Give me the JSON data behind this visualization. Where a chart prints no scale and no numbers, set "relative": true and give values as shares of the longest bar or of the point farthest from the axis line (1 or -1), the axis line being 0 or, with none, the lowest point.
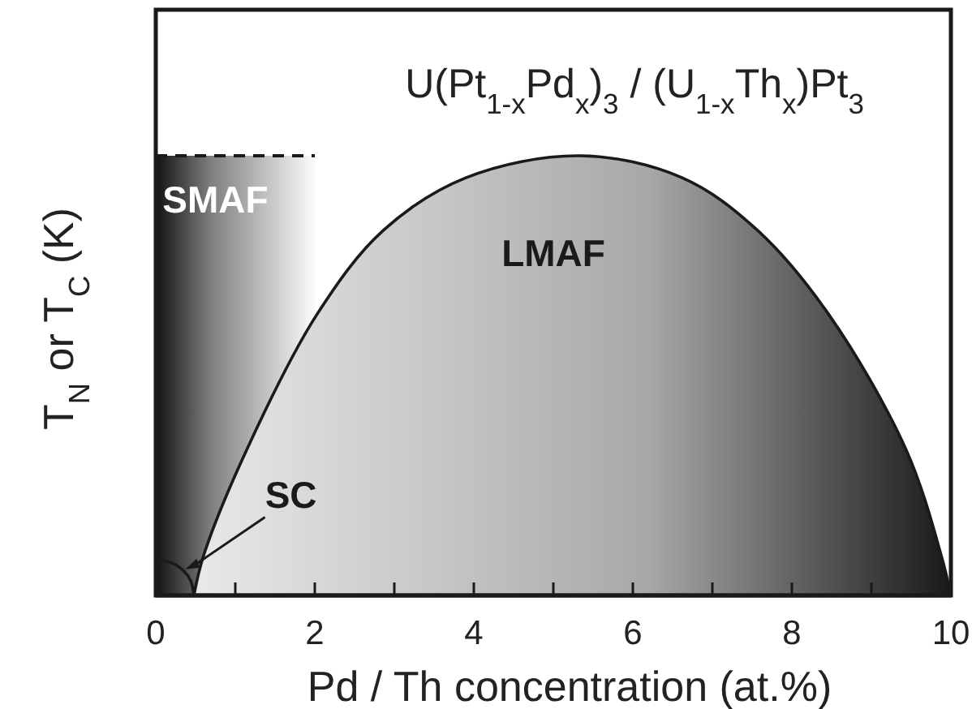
{
  "chart_data": {
    "type": "area",
    "relative": true,
    "title": "U(Pt$_{1-x}$Pd$_{x}$)$_{3}$ / (U$_{1-x}$Th$_{x}$)Pt$_{3}$",
    "xlabel": "Pd / Th concentration (at.%)",
    "ylabel": "T$_{N}$ or T$_{C}$ (K)",
    "xlim": [
      0,
      10
    ],
    "xticks": [
      0,
      {
        "value": 1,
        "label": null
      },
      2,
      {
        "value": 3,
        "label": null
      },
      4,
      {
        "value": 5,
        "label": null
      },
      6,
      {
        "value": 7,
        "label": null
      },
      8,
      {
        "value": 9,
        "label": null
      },
      10
    ],
    "series": [
      {
        "color": "#808080",
        "line_style": "dashed",
        "x": [
          0,
          2
        ],
        "values": [
          1,
          1
        ]
      },
      {
        "color": "#a8a8a8",
        "line_style": "solid",
        "x": [
          0.48,
          0.6,
          1.14,
          2.03,
          2.86,
          3.9,
          5.33,
          6.62,
          7.57,
          8.46,
          9.44,
          9.88,
          10
        ],
        "values": [
          0,
          0.09,
          0.33,
          0.64,
          0.83,
          0.95,
          1,
          0.95,
          0.83,
          0.64,
          0.33,
          0.09,
          0
        ]
      },
      {
        "type": "line",
        "color": "#1a1a1a",
        "line_style": "solid",
        "x": [
          0,
          0.2,
          0.35,
          0.44,
          0.48
        ],
        "values": [
          0.08,
          0.074,
          0.056,
          0.033,
          0
        ]
      }
    ],
    "annotations": [
      "SMAF",
      "LMAF",
      "SC"
    ]
  }
}
